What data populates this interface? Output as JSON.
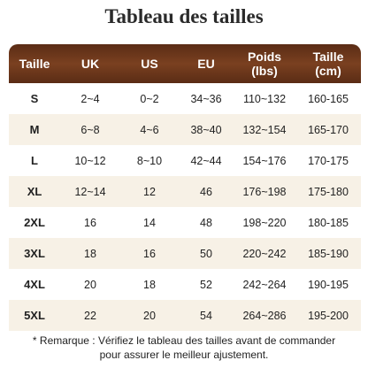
{
  "title": "Tableau des tailles",
  "table": {
    "header": [
      "Taille",
      "UK",
      "US",
      "EU",
      "Poids (lbs)",
      "Taille (cm)"
    ],
    "rows": [
      [
        "S",
        "2~4",
        "0~2",
        "34~36",
        "110~132",
        "160-165"
      ],
      [
        "M",
        "6~8",
        "4~6",
        "38~40",
        "132~154",
        "165-170"
      ],
      [
        "L",
        "10~12",
        "8~10",
        "42~44",
        "154~176",
        "170-175"
      ],
      [
        "XL",
        "12~14",
        "12",
        "46",
        "176~198",
        "175-180"
      ],
      [
        "2XL",
        "16",
        "14",
        "48",
        "198~220",
        "180-185"
      ],
      [
        "3XL",
        "18",
        "16",
        "50",
        "220~242",
        "185-190"
      ],
      [
        "4XL",
        "20",
        "18",
        "52",
        "242~264",
        "190-195"
      ],
      [
        "5XL",
        "22",
        "20",
        "54",
        "264~286",
        "195-200"
      ]
    ]
  },
  "note": "* Remarque : Vérifiez le tableau des tailles avant de commander pour assurer le meilleur ajustement."
}
